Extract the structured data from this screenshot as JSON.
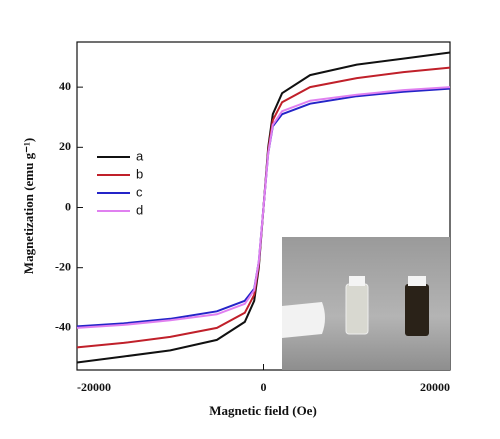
{
  "chart_data": {
    "type": "line",
    "xlabel": "Magnetic field (Oe)",
    "ylabel": "Magnetization (emu g⁻¹)",
    "x": [
      -20000,
      -15000,
      -10000,
      -5000,
      -2000,
      -1000,
      -500,
      0,
      500,
      1000,
      2000,
      5000,
      10000,
      15000,
      20000
    ],
    "series": [
      {
        "name": "a",
        "color": "#111111",
        "values": [
          -51.5,
          -49.5,
          -47.5,
          -44,
          -38,
          -31,
          -20,
          0,
          20,
          31,
          38,
          44,
          47.5,
          49.5,
          51.5
        ]
      },
      {
        "name": "b",
        "color": "#c0202a",
        "values": [
          -46.5,
          -45,
          -43,
          -40,
          -35,
          -29,
          -19,
          0,
          19,
          29,
          35,
          40,
          43,
          45,
          46.5
        ]
      },
      {
        "name": "c",
        "color": "#2424c8",
        "values": [
          -39.5,
          -38.5,
          -37,
          -34.5,
          -31,
          -27,
          -18,
          0,
          18,
          27,
          31,
          34.5,
          37,
          38.5,
          39.5
        ]
      },
      {
        "name": "d",
        "color": "#e080f0",
        "values": [
          -40,
          -39,
          -37.5,
          -35.5,
          -32,
          -27.5,
          -18,
          0,
          18,
          27.5,
          32,
          35.5,
          37.5,
          39,
          40
        ]
      }
    ],
    "xlim": [
      -20000,
      20000
    ],
    "xticks": [
      -20000,
      0,
      20000
    ],
    "ylim": [
      -54,
      55
    ],
    "yticks": [
      -40,
      -20,
      0,
      20,
      40
    ],
    "legend": "upper left"
  }
}
